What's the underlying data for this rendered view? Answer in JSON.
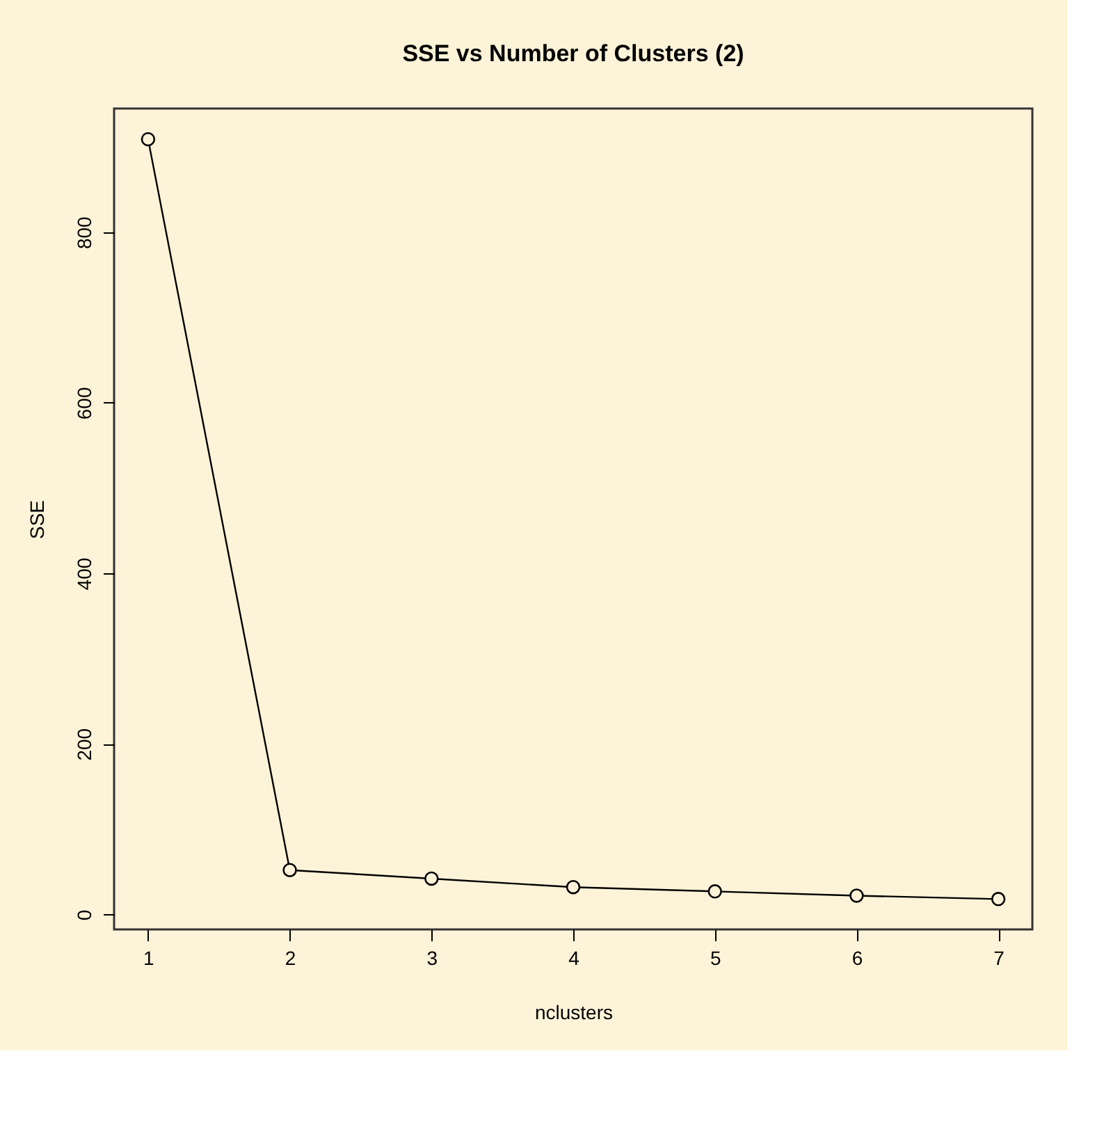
{
  "chart_data": {
    "type": "line",
    "title": "SSE vs Number of Clusters (2)",
    "xlabel": "nclusters",
    "ylabel": "SSE",
    "x": [
      1,
      2,
      3,
      4,
      5,
      6,
      7
    ],
    "series": [
      {
        "color": "#000000",
        "values": [
          909,
          52,
          42,
          32,
          27,
          22,
          18
        ]
      }
    ],
    "xlim": [
      0.76,
      7.24
    ],
    "xticks": [
      1,
      2,
      3,
      4,
      5,
      6,
      7
    ],
    "ylim": [
      -17.6,
      945
    ],
    "yticks": [
      0,
      200,
      400,
      600,
      800
    ],
    "marker": "circle",
    "line_style": "solid",
    "grid": false,
    "legend": false
  }
}
